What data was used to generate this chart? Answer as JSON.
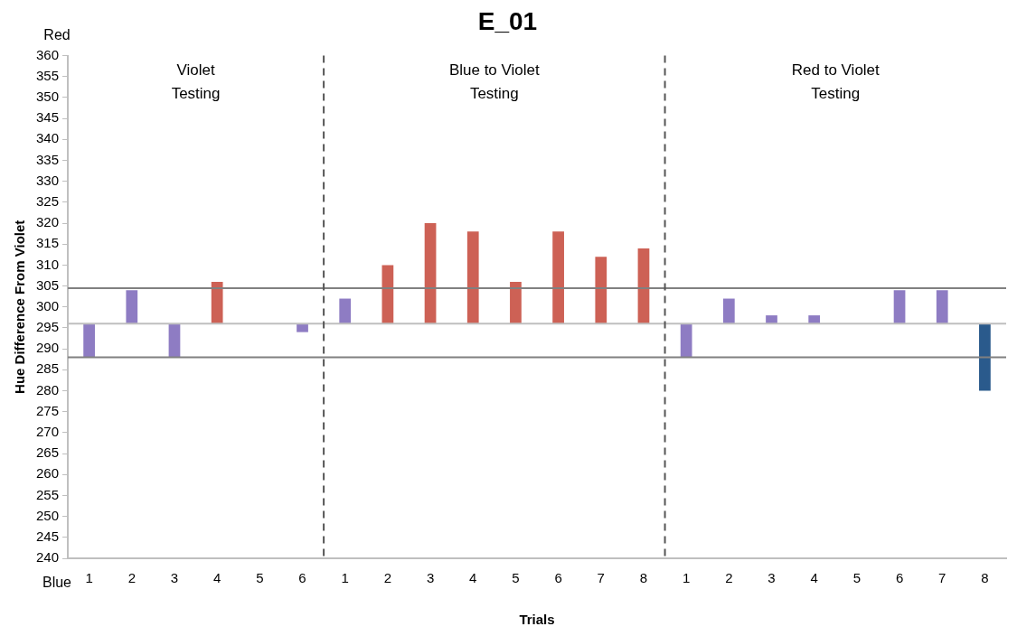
{
  "chart_data": {
    "type": "bar",
    "title": "E_01",
    "xlabel": "Trials",
    "ylabel": "Hue Difference From Violet",
    "categories": [
      "1",
      "2",
      "3",
      "4",
      "5",
      "6",
      "1",
      "2",
      "3",
      "4",
      "5",
      "6",
      "7",
      "8",
      "1",
      "2",
      "3",
      "4",
      "5",
      "6",
      "7",
      "8"
    ],
    "base": [
      296,
      296,
      296,
      296,
      null,
      296,
      296,
      296,
      296,
      296,
      296,
      296,
      296,
      296,
      296,
      296,
      296,
      296,
      null,
      296,
      296,
      296
    ],
    "values": [
      -8,
      8,
      -8,
      10,
      null,
      -2,
      6,
      14,
      24,
      22,
      10,
      22,
      16,
      18,
      -8,
      6,
      2,
      2,
      null,
      8,
      8,
      -16
    ],
    "colors": [
      "#8e7cc3",
      "#8e7cc3",
      "#8e7cc3",
      "#cd6155",
      "#8e7cc3",
      "#8e7cc3",
      "#8e7cc3",
      "#cd6155",
      "#cd6155",
      "#cd6155",
      "#cd6155",
      "#cd6155",
      "#cd6155",
      "#cd6155",
      "#8e7cc3",
      "#8e7cc3",
      "#8e7cc3",
      "#8e7cc3",
      "#8e7cc3",
      "#8e7cc3",
      "#8e7cc3",
      "#2a5a8c"
    ],
    "ylim": [
      240,
      360
    ],
    "yticks": [
      240,
      245,
      250,
      255,
      260,
      265,
      270,
      275,
      280,
      285,
      290,
      295,
      300,
      305,
      310,
      315,
      320,
      325,
      330,
      335,
      340,
      345,
      350,
      355,
      360
    ],
    "ref_lines": [
      {
        "axis": "y",
        "value": 296,
        "color": "#bfbfbf",
        "line_style": "solid"
      },
      {
        "axis": "y",
        "value": 304.5,
        "color": "#808080",
        "line_style": "solid"
      },
      {
        "axis": "y",
        "value": 288,
        "color": "#808080",
        "line_style": "solid"
      }
    ],
    "annotations": [
      "Violet\nTesting",
      "Blue to Violet\nTesting",
      "Red to Violet\nTesting",
      "Red",
      "Blue"
    ],
    "grid": false,
    "legend": false
  }
}
